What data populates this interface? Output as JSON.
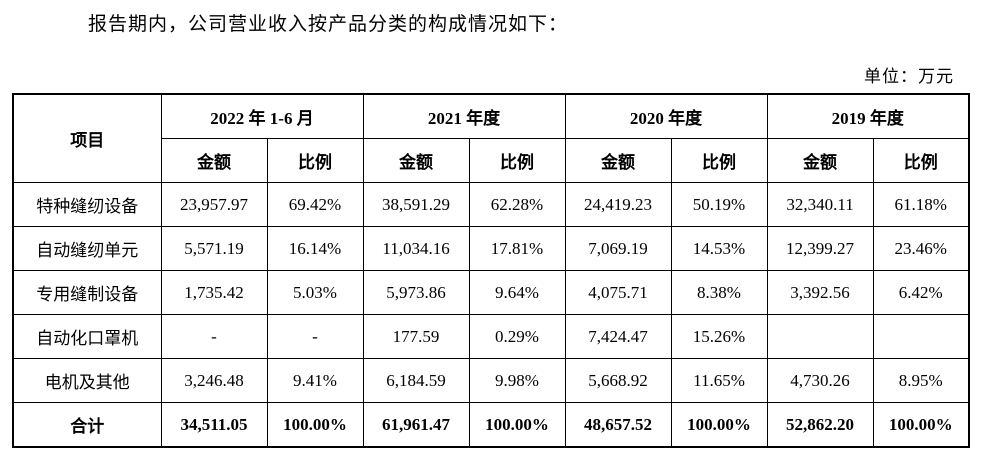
{
  "intro": "报告期内，公司营业收入按产品分类的构成情况如下：",
  "unit_label": "单位：万元",
  "table": {
    "item_header": "项目",
    "period_headers": [
      "2022 年 1-6 月",
      "2021 年度",
      "2020 年度",
      "2019 年度"
    ],
    "sub_headers": [
      "金额",
      "比例"
    ],
    "rows": [
      {
        "label": "特种缝纫设备",
        "values": [
          "23,957.97",
          "69.42%",
          "38,591.29",
          "62.28%",
          "24,419.23",
          "50.19%",
          "32,340.11",
          "61.18%"
        ]
      },
      {
        "label": "自动缝纫单元",
        "values": [
          "5,571.19",
          "16.14%",
          "11,034.16",
          "17.81%",
          "7,069.19",
          "14.53%",
          "12,399.27",
          "23.46%"
        ]
      },
      {
        "label": "专用缝制设备",
        "values": [
          "1,735.42",
          "5.03%",
          "5,973.86",
          "9.64%",
          "4,075.71",
          "8.38%",
          "3,392.56",
          "6.42%"
        ]
      },
      {
        "label": "自动化口罩机",
        "values": [
          "-",
          "-",
          "177.59",
          "0.29%",
          "7,424.47",
          "15.26%",
          "",
          ""
        ]
      },
      {
        "label": "电机及其他",
        "values": [
          "3,246.48",
          "9.41%",
          "6,184.59",
          "9.98%",
          "5,668.92",
          "11.65%",
          "4,730.26",
          "8.95%"
        ]
      },
      {
        "label": "合计",
        "values": [
          "34,511.05",
          "100.00%",
          "61,961.47",
          "100.00%",
          "48,657.52",
          "100.00%",
          "52,862.20",
          "100.00%"
        ]
      }
    ]
  }
}
